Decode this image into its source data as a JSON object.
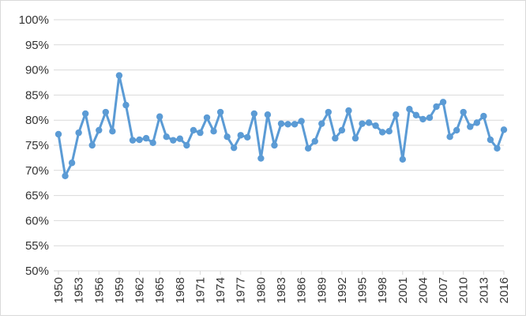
{
  "chart_data": {
    "type": "line",
    "title": "",
    "xlabel": "",
    "ylabel": "",
    "x": [
      1950,
      1951,
      1952,
      1953,
      1954,
      1955,
      1956,
      1957,
      1958,
      1959,
      1960,
      1961,
      1962,
      1963,
      1964,
      1965,
      1966,
      1967,
      1968,
      1969,
      1970,
      1971,
      1972,
      1973,
      1974,
      1975,
      1976,
      1977,
      1978,
      1979,
      1980,
      1981,
      1982,
      1983,
      1984,
      1985,
      1986,
      1987,
      1988,
      1989,
      1990,
      1991,
      1992,
      1993,
      1994,
      1995,
      1996,
      1997,
      1998,
      1999,
      2000,
      2001,
      2002,
      2003,
      2004,
      2005,
      2006,
      2007,
      2008,
      2009,
      2010,
      2011,
      2012,
      2013,
      2014,
      2015,
      2016
    ],
    "y_unit": "percent",
    "ylim": [
      50,
      100
    ],
    "y_ticks": [
      "50%",
      "55%",
      "60%",
      "65%",
      "70%",
      "75%",
      "80%",
      "85%",
      "90%",
      "95%",
      "100%"
    ],
    "x_tick_labels": [
      "1950",
      "1953",
      "1956",
      "1959",
      "1962",
      "1965",
      "1968",
      "1971",
      "1974",
      "1977",
      "1980",
      "1983",
      "1986",
      "1989",
      "1992",
      "1995",
      "1998",
      "2001",
      "2004",
      "2007",
      "2010",
      "2013",
      "2016"
    ],
    "grid": true,
    "legend": "none",
    "series": [
      {
        "color": "#5b9bd5",
        "values": [
          77.2,
          68.9,
          71.5,
          77.5,
          81.3,
          75.0,
          78.0,
          81.6,
          77.8,
          88.9,
          83.0,
          76.0,
          76.1,
          76.4,
          75.5,
          80.7,
          76.7,
          76.0,
          76.3,
          75.0,
          78.0,
          77.5,
          80.5,
          77.8,
          81.6,
          76.7,
          74.5,
          77.0,
          76.6,
          81.3,
          72.4,
          81.1,
          75.0,
          79.3,
          79.2,
          79.2,
          79.8,
          74.4,
          75.8,
          79.3,
          81.6,
          76.4,
          78.0,
          81.9,
          76.4,
          79.3,
          79.5,
          78.9,
          77.6,
          77.8,
          81.1,
          72.2,
          82.2,
          81.0,
          80.2,
          80.5,
          82.7,
          83.6,
          76.7,
          78.0,
          81.6,
          78.7,
          79.5,
          80.8,
          76.1,
          74.4,
          78.1
        ]
      }
    ]
  }
}
